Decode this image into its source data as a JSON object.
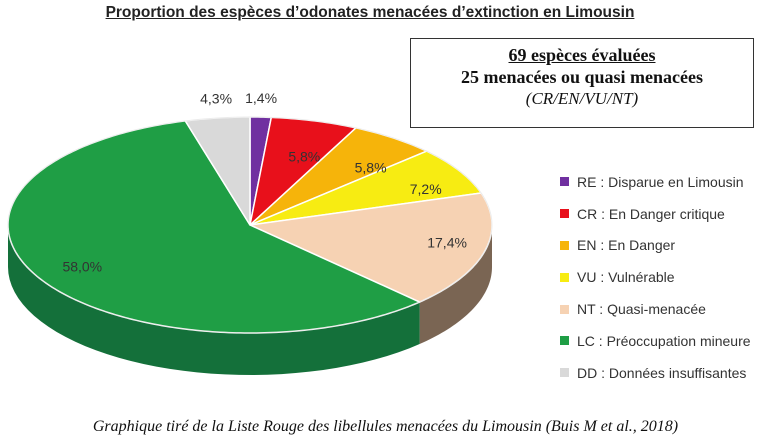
{
  "title": "Proportion des espèces d’odonates menacées d’extinction en Limousin",
  "infobox": {
    "line1": "69 espèces évaluées",
    "line2": "25 menacées ou quasi menacées",
    "line3": "(CR/EN/VU/NT)"
  },
  "caption": "Graphique tiré de la Liste Rouge des libellules menacées du Limousin (Buis M et al., 2018)",
  "chart_data": {
    "type": "pie",
    "title": "Proportion des espèces d’odonates menacées d’extinction en Limousin",
    "legend_position": "right",
    "slices": [
      {
        "code": "RE",
        "label": "RE : Disparue en Limousin",
        "value": 1.4,
        "value_label": "1,4%",
        "color": "#7030a0",
        "side_color": "#4a1f6b"
      },
      {
        "code": "CR",
        "label": "CR : En Danger critique",
        "value": 5.8,
        "value_label": "5,8%",
        "color": "#e8101b",
        "side_color": "#9c0b12"
      },
      {
        "code": "EN",
        "label": "EN : En Danger",
        "value": 5.8,
        "value_label": "5,8%",
        "color": "#f6b40a",
        "side_color": "#a87a06"
      },
      {
        "code": "VU",
        "label": "VU : Vulnérable",
        "value": 7.2,
        "value_label": "7,2%",
        "color": "#f7ec12",
        "side_color": "#aaa20c"
      },
      {
        "code": "NT",
        "label": "NT : Quasi-menacée",
        "value": 17.4,
        "value_label": "17,4%",
        "color": "#f6d2b3",
        "side_color": "#7a6553"
      },
      {
        "code": "LC",
        "label": "LC : Préoccupation mineure",
        "value": 58.0,
        "value_label": "58,0%",
        "color": "#1f9e45",
        "side_color": "#14703a"
      },
      {
        "code": "DD",
        "label": "DD : Données insuffisantes",
        "value": 4.3,
        "value_label": "4,3%",
        "color": "#d9d9d9",
        "side_color": "#9a9a9a"
      }
    ]
  }
}
